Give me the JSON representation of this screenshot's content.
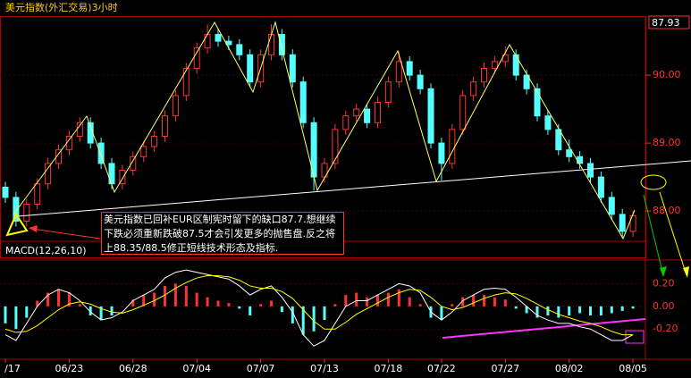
{
  "chart_data": [
    {
      "type": "candlestick",
      "title": "美元指数(外汇交易)3小时",
      "last": 87.93,
      "up_color": "#ff3232",
      "down_color": "#54ffff",
      "annotation": "美元指数已回补EUR区制宪时留下的缺口87.7.想继续下跌必须重新跌破87.5才会引发更多的抛售盘.反之将上88.35/88.5修正短线技术形态及指标.",
      "ylim": [
        87.33,
        90.87
      ],
      "yticks": [
        {
          "value": 88,
          "label": "88.00"
        },
        {
          "value": 89,
          "label": "89.00"
        },
        {
          "value": 90,
          "label": "90.00"
        }
      ],
      "ohlc": [
        [
          88.35,
          88.43,
          88.12,
          88.2
        ],
        [
          88.2,
          88.28,
          87.77,
          87.85
        ],
        [
          87.85,
          88.18,
          87.77,
          88.1
        ],
        [
          88.1,
          88.48,
          88.02,
          88.4
        ],
        [
          88.4,
          88.78,
          88.32,
          88.7
        ],
        [
          88.7,
          88.98,
          88.62,
          88.9
        ],
        [
          88.9,
          89.18,
          88.82,
          89.1
        ],
        [
          89.1,
          89.38,
          89.02,
          89.3
        ],
        [
          89.3,
          89.38,
          88.92,
          89.0
        ],
        [
          89.0,
          89.08,
          88.62,
          88.7
        ],
        [
          88.7,
          88.78,
          88.32,
          88.4
        ],
        [
          88.4,
          88.68,
          88.32,
          88.6
        ],
        [
          88.6,
          88.88,
          88.52,
          88.8
        ],
        [
          88.8,
          89.03,
          88.72,
          88.95
        ],
        [
          88.95,
          89.18,
          88.87,
          89.1
        ],
        [
          89.1,
          89.48,
          89.02,
          89.4
        ],
        [
          89.4,
          89.78,
          89.32,
          89.7
        ],
        [
          89.7,
          90.18,
          89.62,
          90.1
        ],
        [
          90.1,
          90.48,
          90.02,
          90.4
        ],
        [
          90.4,
          90.75,
          90.32,
          90.6
        ],
        [
          90.6,
          90.68,
          90.42,
          90.5
        ],
        [
          90.5,
          90.58,
          90.37,
          90.45
        ],
        [
          90.45,
          90.53,
          90.22,
          90.3
        ],
        [
          90.3,
          90.38,
          89.82,
          89.9
        ],
        [
          89.9,
          90.38,
          89.82,
          90.3
        ],
        [
          90.3,
          90.75,
          90.22,
          90.6
        ],
        [
          90.6,
          90.68,
          90.22,
          90.3
        ],
        [
          90.3,
          90.38,
          89.82,
          89.9
        ],
        [
          89.9,
          89.98,
          89.22,
          89.3
        ],
        [
          89.3,
          89.38,
          88.3,
          88.5
        ],
        [
          88.5,
          88.78,
          88.42,
          88.7
        ],
        [
          88.7,
          89.28,
          88.62,
          89.2
        ],
        [
          89.2,
          89.48,
          89.12,
          89.4
        ],
        [
          89.4,
          89.58,
          89.32,
          89.5
        ],
        [
          89.5,
          89.58,
          89.22,
          89.3
        ],
        [
          89.3,
          89.68,
          89.22,
          89.6
        ],
        [
          89.6,
          89.98,
          89.52,
          89.9
        ],
        [
          89.9,
          90.35,
          89.82,
          90.2
        ],
        [
          90.2,
          90.28,
          89.92,
          90.0
        ],
        [
          90.0,
          90.08,
          89.72,
          89.8
        ],
        [
          89.8,
          89.88,
          88.92,
          89.0
        ],
        [
          89.0,
          89.08,
          88.45,
          88.7
        ],
        [
          88.7,
          89.28,
          88.62,
          89.2
        ],
        [
          89.2,
          89.78,
          89.12,
          89.7
        ],
        [
          89.7,
          89.98,
          89.62,
          89.9
        ],
        [
          89.9,
          90.18,
          89.82,
          90.1
        ],
        [
          90.1,
          90.28,
          90.02,
          90.2
        ],
        [
          90.2,
          90.42,
          90.12,
          90.3
        ],
        [
          90.3,
          90.38,
          89.92,
          90.0
        ],
        [
          90.0,
          90.08,
          89.72,
          89.8
        ],
        [
          89.8,
          89.88,
          89.32,
          89.4
        ],
        [
          89.4,
          89.48,
          89.12,
          89.2
        ],
        [
          89.2,
          89.28,
          88.82,
          88.9
        ],
        [
          88.9,
          89.05,
          88.72,
          88.8
        ],
        [
          88.8,
          88.88,
          88.62,
          88.7
        ],
        [
          88.7,
          88.78,
          88.42,
          88.5
        ],
        [
          88.5,
          88.58,
          88.12,
          88.2
        ],
        [
          88.2,
          88.28,
          87.87,
          87.95
        ],
        [
          87.95,
          88.03,
          87.6,
          87.7
        ],
        [
          87.7,
          88.0,
          87.62,
          87.93
        ]
      ]
    },
    {
      "type": "macd",
      "title": "MACD(12,26,10)",
      "ylim": [
        -0.45,
        0.4
      ],
      "yticks": [
        {
          "value": 0.2,
          "label": "0.20"
        },
        {
          "value": 0,
          "label": "0.00"
        },
        {
          "value": -0.2,
          "label": "-0.20"
        }
      ],
      "xticks": [
        {
          "value": 0,
          "label": "/17"
        },
        {
          "value": 6,
          "label": "06/23"
        },
        {
          "value": 12,
          "label": "06/28"
        },
        {
          "value": 18,
          "label": "07/04"
        },
        {
          "value": 24,
          "label": "07/07"
        },
        {
          "value": 30,
          "label": "07/13"
        },
        {
          "value": 36,
          "label": "07/18"
        },
        {
          "value": 41,
          "label": "07/22"
        },
        {
          "value": 47,
          "label": "07/27"
        },
        {
          "value": 53,
          "label": "08/02"
        },
        {
          "value": 59,
          "label": "08/05"
        }
      ],
      "histogram": {
        "up_color": "#ff3232",
        "down_color": "#54ffff",
        "values": [
          -0.15,
          -0.2,
          -0.1,
          0.05,
          0.12,
          0.15,
          0.12,
          0.02,
          -0.08,
          -0.12,
          -0.08,
          0.0,
          0.06,
          0.1,
          0.12,
          0.18,
          0.2,
          0.18,
          0.12,
          0.08,
          0.05,
          0.03,
          -0.02,
          -0.08,
          0.02,
          0.05,
          -0.05,
          -0.15,
          -0.25,
          -0.22,
          -0.12,
          0.02,
          0.1,
          0.12,
          0.08,
          0.1,
          0.12,
          0.15,
          0.08,
          0.02,
          -0.1,
          -0.12,
          0.02,
          0.08,
          0.1,
          0.1,
          0.08,
          0.06,
          -0.02,
          -0.06,
          -0.1,
          -0.08,
          -0.1,
          -0.08,
          -0.06,
          -0.08,
          -0.08,
          -0.06,
          -0.04,
          -0.02
        ]
      },
      "series": [
        {
          "color": "#ffffff",
          "values": [
            -0.25,
            -0.3,
            -0.15,
            0.0,
            0.1,
            0.15,
            0.12,
            0.05,
            -0.05,
            -0.12,
            -0.1,
            -0.05,
            0.05,
            0.1,
            0.15,
            0.25,
            0.3,
            0.32,
            0.3,
            0.28,
            0.26,
            0.24,
            0.18,
            0.1,
            0.15,
            0.18,
            0.08,
            -0.05,
            -0.25,
            -0.35,
            -0.3,
            -0.15,
            0.0,
            0.05,
            0.05,
            0.1,
            0.15,
            0.2,
            0.18,
            0.12,
            -0.05,
            -0.12,
            -0.05,
            0.05,
            0.1,
            0.15,
            0.16,
            0.15,
            0.08,
            0.0,
            -0.08,
            -0.12,
            -0.15,
            -0.15,
            -0.18,
            -0.2,
            -0.25,
            -0.3,
            -0.3,
            -0.25
          ]
        },
        {
          "color": "#ffff00",
          "values": [
            -0.2,
            -0.23,
            -0.22,
            -0.17,
            -0.1,
            -0.03,
            0.02,
            0.04,
            0.02,
            -0.02,
            -0.05,
            -0.06,
            -0.03,
            0.01,
            0.05,
            0.1,
            0.16,
            0.21,
            0.25,
            0.27,
            0.27,
            0.26,
            0.23,
            0.18,
            0.16,
            0.16,
            0.13,
            0.07,
            -0.03,
            -0.13,
            -0.2,
            -0.2,
            -0.14,
            -0.07,
            -0.02,
            0.03,
            0.08,
            0.12,
            0.15,
            0.14,
            0.08,
            0.0,
            -0.03,
            -0.01,
            0.03,
            0.07,
            0.1,
            0.12,
            0.11,
            0.07,
            0.02,
            -0.03,
            -0.07,
            -0.1,
            -0.13,
            -0.15,
            -0.18,
            -0.22,
            -0.25,
            -0.25
          ]
        }
      ]
    }
  ]
}
